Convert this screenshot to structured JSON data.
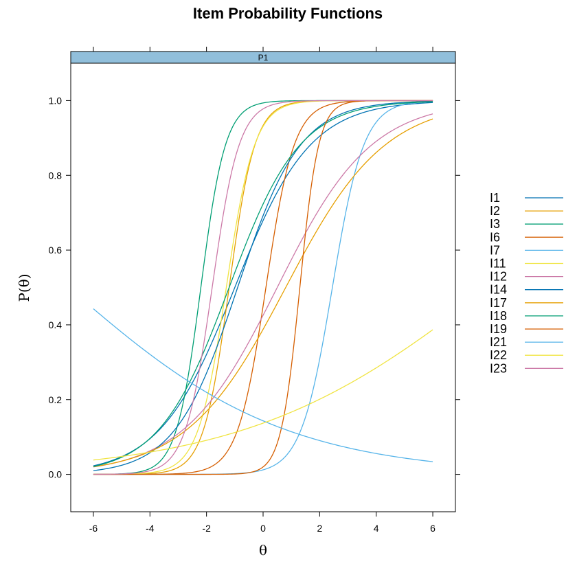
{
  "chart_data": {
    "type": "line",
    "title": "Item Probability Functions",
    "panel": "P1",
    "xlabel": "θ",
    "ylabel": "P(θ)",
    "xlim": [
      -6.8,
      6.8
    ],
    "ylim": [
      -0.1,
      1.1
    ],
    "xticks": [
      -6,
      -4,
      -2,
      0,
      2,
      4,
      6
    ],
    "xtick_labels": [
      "-6",
      "-4",
      "-2",
      "0",
      "2",
      "4",
      "6"
    ],
    "yticks": [
      0.0,
      0.2,
      0.4,
      0.6,
      0.8,
      1.0
    ],
    "ytick_labels": [
      "0.0",
      "0.2",
      "0.4",
      "0.6",
      "0.8",
      "1.0"
    ],
    "x_range": [
      -6,
      6
    ],
    "grid": false,
    "legend_position": "right",
    "strip_color": "#91bfdb",
    "series": [
      {
        "name": "I1",
        "color": "#0072b2",
        "a": 0.75,
        "b": -1.0
      },
      {
        "name": "I2",
        "color": "#e69f00",
        "a": 2.2,
        "b": -1.2
      },
      {
        "name": "I3",
        "color": "#009e73",
        "a": 2.3,
        "b": -2.2
      },
      {
        "name": "I6",
        "color": "#d55e00",
        "a": 2.0,
        "b": 0.1
      },
      {
        "name": "I7",
        "color": "#56b4e9",
        "a": 1.8,
        "b": 2.45
      },
      {
        "name": "I11",
        "color": "#f0e442",
        "a": 2.0,
        "b": -1.3
      },
      {
        "name": "I12",
        "color": "#cc79a7",
        "a": 0.6,
        "b": 0.5
      },
      {
        "name": "I14",
        "color": "#0072b2",
        "a": 0.9,
        "b": -0.9
      },
      {
        "name": "I17",
        "color": "#e69f00",
        "a": 0.57,
        "b": 0.8
      },
      {
        "name": "I18",
        "color": "#009e73",
        "a": 0.8,
        "b": -1.2
      },
      {
        "name": "I19",
        "color": "#d55e00",
        "a": 3.0,
        "b": 1.3
      },
      {
        "name": "I21",
        "color": "#56b4e9",
        "a": -0.26,
        "b": -6.88
      },
      {
        "name": "I22",
        "color": "#f0e442",
        "a": 0.23,
        "b": 8.0
      },
      {
        "name": "I23",
        "color": "#cc79a7",
        "a": 2.1,
        "b": -1.8
      }
    ]
  }
}
